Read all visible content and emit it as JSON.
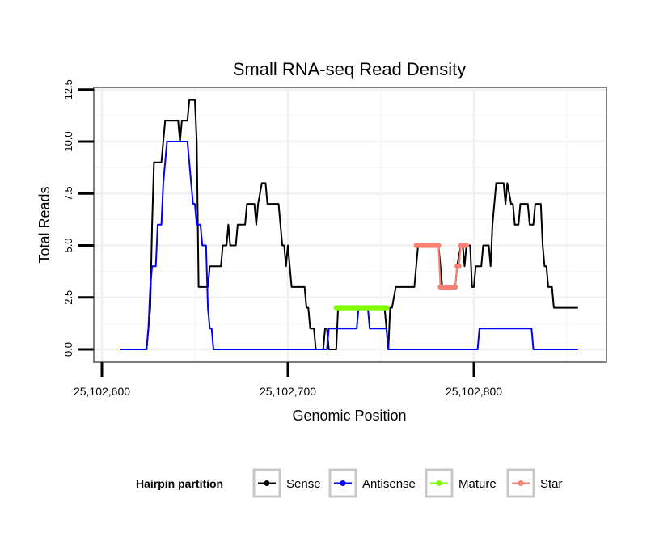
{
  "chart_data": {
    "type": "line",
    "title": "Small RNA-seq Read Density",
    "xlabel": "Genomic Position",
    "ylabel": "Total Reads",
    "xlim": [
      25102600,
      25102860
    ],
    "ylim": [
      0,
      12.5
    ],
    "x_ticks": [
      25102600,
      25102700,
      25102800
    ],
    "x_tick_labels": [
      "25,102,600",
      "25,102,700",
      "25,102,800"
    ],
    "y_ticks": [
      0,
      2.5,
      5,
      7.5,
      10,
      12.5
    ],
    "y_tick_labels": [
      "0.0",
      "2.5",
      "5.0",
      "7.5",
      "10.0",
      "12.5"
    ],
    "grid": true,
    "legend": {
      "title": "Hairpin partition",
      "position": "bottom",
      "entries": [
        {
          "label": "Sense",
          "color": "#000000"
        },
        {
          "label": "Antisense",
          "color": "#0000ff"
        },
        {
          "label": "Mature",
          "color": "#7fff00"
        },
        {
          "label": "Star",
          "color": "#fa8072"
        }
      ]
    },
    "series": [
      {
        "name": "Sense",
        "color": "#000000",
        "style": "line",
        "points": [
          [
            25102610,
            0
          ],
          [
            25102624,
            0
          ],
          [
            25102626,
            2
          ],
          [
            25102627,
            6
          ],
          [
            25102628,
            9
          ],
          [
            25102632,
            9
          ],
          [
            25102633,
            10
          ],
          [
            25102634,
            11
          ],
          [
            25102641,
            11
          ],
          [
            25102642,
            10
          ],
          [
            25102643,
            11
          ],
          [
            25102646,
            11
          ],
          [
            25102647,
            12
          ],
          [
            25102650,
            12
          ],
          [
            25102651,
            10
          ],
          [
            25102652,
            3
          ],
          [
            25102657,
            3
          ],
          [
            25102658,
            4
          ],
          [
            25102664,
            4
          ],
          [
            25102665,
            5
          ],
          [
            25102667,
            5
          ],
          [
            25102668,
            6
          ],
          [
            25102669,
            5
          ],
          [
            25102672,
            5
          ],
          [
            25102673,
            6
          ],
          [
            25102677,
            6
          ],
          [
            25102678,
            7
          ],
          [
            25102682,
            7
          ],
          [
            25102683,
            6
          ],
          [
            25102684,
            7
          ],
          [
            25102686,
            8
          ],
          [
            25102688,
            8
          ],
          [
            25102689,
            7
          ],
          [
            25102695,
            7
          ],
          [
            25102696,
            6
          ],
          [
            25102697,
            5
          ],
          [
            25102698,
            5
          ],
          [
            25102699,
            4
          ],
          [
            25102700,
            5
          ],
          [
            25102701,
            4
          ],
          [
            25102702,
            3
          ],
          [
            25102709,
            3
          ],
          [
            25102710,
            2
          ],
          [
            25102711,
            2
          ],
          [
            25102712,
            1
          ],
          [
            25102713,
            1
          ],
          [
            25102714,
            1
          ],
          [
            25102715,
            0
          ],
          [
            25102719,
            0
          ],
          [
            25102720,
            1
          ],
          [
            25102721,
            1
          ],
          [
            25102722,
            0
          ],
          [
            25102726,
            0
          ],
          [
            25102727,
            2
          ],
          [
            25102728,
            2
          ],
          [
            25102752,
            2
          ],
          [
            25102753,
            1
          ],
          [
            25102754,
            0
          ],
          [
            25102755,
            2
          ],
          [
            25102756,
            2
          ],
          [
            25102758,
            3
          ],
          [
            25102768,
            3
          ],
          [
            25102769,
            4
          ],
          [
            25102770,
            5
          ],
          [
            25102781,
            5
          ],
          [
            25102782,
            4
          ],
          [
            25102783,
            3
          ],
          [
            25102790,
            3
          ],
          [
            25102791,
            4
          ],
          [
            25102793,
            5
          ],
          [
            25102794,
            5
          ],
          [
            25102795,
            4
          ],
          [
            25102796,
            5
          ],
          [
            25102798,
            5
          ],
          [
            25102799,
            3
          ],
          [
            25102800,
            3
          ],
          [
            25102801,
            4
          ],
          [
            25102804,
            4
          ],
          [
            25102805,
            5
          ],
          [
            25102808,
            5
          ],
          [
            25102809,
            4
          ],
          [
            25102810,
            6
          ],
          [
            25102811,
            7
          ],
          [
            25102812,
            8
          ],
          [
            25102816,
            8
          ],
          [
            25102817,
            7
          ],
          [
            25102818,
            8
          ],
          [
            25102820,
            7
          ],
          [
            25102821,
            7
          ],
          [
            25102822,
            6
          ],
          [
            25102824,
            6
          ],
          [
            25102825,
            7
          ],
          [
            25102829,
            7
          ],
          [
            25102830,
            6
          ],
          [
            25102832,
            6
          ],
          [
            25102833,
            7
          ],
          [
            25102836,
            7
          ],
          [
            25102837,
            5
          ],
          [
            25102838,
            4
          ],
          [
            25102839,
            4
          ],
          [
            25102840,
            3
          ],
          [
            25102842,
            3
          ],
          [
            25102843,
            2
          ],
          [
            25102856,
            2
          ]
        ]
      },
      {
        "name": "Antisense",
        "color": "#0000ff",
        "style": "line",
        "points": [
          [
            25102610,
            0
          ],
          [
            25102624,
            0
          ],
          [
            25102625,
            1
          ],
          [
            25102626,
            3
          ],
          [
            25102627,
            4
          ],
          [
            25102629,
            4
          ],
          [
            25102630,
            6
          ],
          [
            25102632,
            6
          ],
          [
            25102633,
            8
          ],
          [
            25102634,
            9
          ],
          [
            25102635,
            10
          ],
          [
            25102646,
            10
          ],
          [
            25102647,
            9
          ],
          [
            25102648,
            8
          ],
          [
            25102649,
            7
          ],
          [
            25102650,
            7
          ],
          [
            25102651,
            6
          ],
          [
            25102653,
            6
          ],
          [
            25102654,
            5
          ],
          [
            25102656,
            5
          ],
          [
            25102657,
            2
          ],
          [
            25102658,
            1
          ],
          [
            25102659,
            1
          ],
          [
            25102660,
            0
          ],
          [
            25102721,
            0
          ],
          [
            25102722,
            1
          ],
          [
            25102737,
            1
          ],
          [
            25102738,
            2
          ],
          [
            25102743,
            2
          ],
          [
            25102744,
            1
          ],
          [
            25102753,
            1
          ],
          [
            25102754,
            0
          ],
          [
            25102802,
            0
          ],
          [
            25102803,
            1
          ],
          [
            25102831,
            1
          ],
          [
            25102832,
            0
          ],
          [
            25102856,
            0
          ]
        ]
      },
      {
        "name": "Mature",
        "color": "#7fff00",
        "style": "points",
        "points": [
          [
            25102726,
            2
          ],
          [
            25102727,
            2
          ],
          [
            25102728,
            2
          ],
          [
            25102729,
            2
          ],
          [
            25102730,
            2
          ],
          [
            25102731,
            2
          ],
          [
            25102732,
            2
          ],
          [
            25102733,
            2
          ],
          [
            25102734,
            2
          ],
          [
            25102735,
            2
          ],
          [
            25102736,
            2
          ],
          [
            25102737,
            2
          ],
          [
            25102738,
            2
          ],
          [
            25102739,
            2
          ],
          [
            25102740,
            2
          ],
          [
            25102741,
            2
          ],
          [
            25102742,
            2
          ],
          [
            25102743,
            2
          ],
          [
            25102744,
            2
          ],
          [
            25102745,
            2
          ],
          [
            25102746,
            2
          ],
          [
            25102747,
            2
          ],
          [
            25102748,
            2
          ],
          [
            25102749,
            2
          ],
          [
            25102750,
            2
          ],
          [
            25102751,
            2
          ],
          [
            25102752,
            2
          ],
          [
            25102753,
            2
          ]
        ]
      },
      {
        "name": "Star",
        "color": "#fa8072",
        "style": "points",
        "points": [
          [
            25102769,
            5
          ],
          [
            25102770,
            5
          ],
          [
            25102771,
            5
          ],
          [
            25102772,
            5
          ],
          [
            25102773,
            5
          ],
          [
            25102774,
            5
          ],
          [
            25102775,
            5
          ],
          [
            25102776,
            5
          ],
          [
            25102777,
            5
          ],
          [
            25102778,
            5
          ],
          [
            25102779,
            5
          ],
          [
            25102780,
            5
          ],
          [
            25102781,
            5
          ],
          [
            25102782,
            3
          ],
          [
            25102783,
            3
          ],
          [
            25102784,
            3
          ],
          [
            25102785,
            3
          ],
          [
            25102786,
            3
          ],
          [
            25102787,
            3
          ],
          [
            25102788,
            3
          ],
          [
            25102789,
            3
          ],
          [
            25102790,
            3
          ],
          [
            25102791,
            4
          ],
          [
            25102792,
            4
          ],
          [
            25102793,
            5
          ],
          [
            25102794,
            5
          ],
          [
            25102795,
            5
          ],
          [
            25102796,
            5
          ]
        ]
      }
    ]
  }
}
